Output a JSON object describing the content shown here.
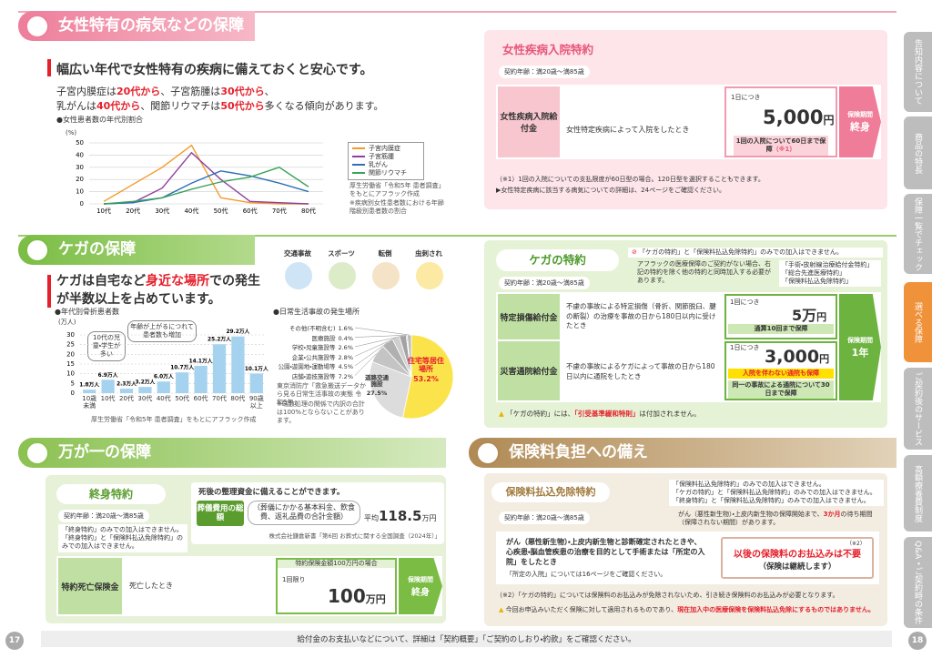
{
  "left_page": {
    "page_number": "17",
    "women": {
      "title": "女性特有の病気などの保障",
      "heading": "幅広い年代で女性特有の疾病に備えておくと安心です。",
      "lead": [
        [
          {
            "text": "子宮内膜症は"
          },
          {
            "text": "20代から",
            "em": true
          },
          {
            "text": "、子宮筋腫は"
          },
          {
            "text": "30代から",
            "em": true
          },
          {
            "text": "、"
          }
        ],
        [
          {
            "text": "乳がんは"
          },
          {
            "text": "40代から",
            "em": true
          },
          {
            "text": "、関節リウマチは"
          },
          {
            "text": "50代から",
            "em": true
          },
          {
            "text": "多くなる傾向があります。"
          }
        ]
      ],
      "chart": {
        "type": "line",
        "title": "●女性患者数の年代別割合",
        "unit": "(%)",
        "categories": [
          "10代",
          "20代",
          "30代",
          "40代",
          "50代",
          "60代",
          "70代",
          "80代"
        ],
        "ylim": [
          0,
          50
        ],
        "yticks": [
          0,
          10,
          20,
          30,
          40,
          50
        ],
        "grid": true,
        "series": [
          {
            "name": "子宮内膜症",
            "color": "#f39a2b",
            "values": [
              2,
              16,
              30,
              48,
              5,
              1,
              0,
              0
            ]
          },
          {
            "name": "子宮筋腫",
            "color": "#8e3fa0",
            "values": [
              0,
              1,
              13,
              42,
              20,
              2,
              1,
              0
            ]
          },
          {
            "name": "乳がん",
            "color": "#2f6fb5",
            "values": [
              0,
              1,
              5,
              17,
              27,
              23,
              17,
              10
            ]
          },
          {
            "name": "関節リウマチ",
            "color": "#3aa35a",
            "values": [
              0,
              2,
              5,
              12,
              18,
              22,
              30,
              14
            ]
          }
        ]
      },
      "source": "厚生労働省「令和5年 患者調査」をもとにアフラック作成",
      "source_note": "※疾病別女性患者数における年齢階級別患者数の割合"
    },
    "injury": {
      "title": "ケガの保障",
      "icons": [
        "交通事故",
        "スポーツ",
        "転倒",
        "虫刺され"
      ],
      "heading": [
        {
          "text": "ケガは自宅など"
        },
        {
          "text": "身近な場所",
          "em": true
        },
        {
          "text": "での発生が半数以上を占めています。"
        }
      ],
      "bar_chart": {
        "type": "bar",
        "title": "●年代別骨折患者数",
        "unit": "(万人)",
        "categories": [
          "10歳未満",
          "10代",
          "20代",
          "30代",
          "40代",
          "50代",
          "60代",
          "70代",
          "80代",
          "90歳以上"
        ],
        "values": [
          1.8,
          6.9,
          2.3,
          3.2,
          6.0,
          10.7,
          14.1,
          25.2,
          29.2,
          10.1
        ],
        "value_labels": [
          "1.8万人",
          "6.9万人",
          "2.3万人",
          "3.2万人",
          "6.0万人",
          "10.7万人",
          "14.1万人",
          "25.2万人",
          "29.2万人",
          "10.1万人"
        ],
        "color": "#a5d3ef",
        "ylim": [
          0,
          30
        ],
        "yticks": [
          0,
          5,
          10,
          15,
          20,
          25,
          30
        ],
        "grid": true,
        "annotations": [
          "10代の児童・学生が多い",
          "年齢が上がるにつれて患者数も増加"
        ]
      },
      "bar_source": "厚生労働省「令和5年 患者調査」をもとにアフラック作成",
      "pie_chart": {
        "type": "pie",
        "title": "●日常生活事故の発生場所",
        "categories": [
          "住宅等居住場所",
          "道路交通施設",
          "店舗・遊技施設等",
          "公園・遊園地・運動場等",
          "企業・公共施設等",
          "学校・児童施設等",
          "医療施設",
          "その他(不明含む)"
        ],
        "values": [
          53.2,
          27.5,
          7.2,
          4.5,
          2.8,
          2.6,
          0.4,
          1.6
        ],
        "value_labels": [
          "53.2%",
          "27.5%",
          "7.2%",
          "4.5%",
          "2.8%",
          "2.6%",
          "0.4%",
          "1.6%"
        ],
        "colors": [
          "#fbe44b",
          "#dcdcdc",
          "#c4c4c4",
          "#b0b0b0",
          "#cfcfcf",
          "#a2a2a2",
          "#8c8c8c",
          "#bdbdbd"
        ]
      },
      "pie_source": "東京消防庁「救急搬送データから見る日常生活事故の実態 令和5年」",
      "pie_note": "※端数処理の関係で内訳の合計は100%とならないことがあります。"
    },
    "death": {
      "title": "万が一の保障",
      "rider": "終身特約",
      "age": "契約年齢：満20歳～満85歳",
      "notes": [
        "「終身特約」のみでの加入はできません。",
        "「終身特約」と「保険料払込免除特約」のみでの加入はできません。"
      ],
      "lead": "死後の整理資金に備えることができます。",
      "funeral_label": "葬儀費用の総額",
      "funeral_detail": "（葬儀にかかる基本料金、飲食費、返礼品費の合計金額）",
      "average_label": "平均",
      "average_value": "118.5",
      "average_unit": "万円",
      "funeral_source": "株式会社鎌倉新書「第6回 お葬式に関する全国調査（2024年）」",
      "benefit": {
        "name": "特約死亡保険金",
        "condition": "死亡したとき",
        "case": "特約保険金額100万円の場合",
        "frequency": "1回限り",
        "amount": "100",
        "unit": "万円",
        "period_label": "保険期間",
        "period": "終身"
      }
    }
  },
  "right_page": {
    "page_number": "18",
    "female_rider": {
      "title": "女性疾病入院特約",
      "age": "契約年齢：満20歳～満85歳",
      "benefit": {
        "name": "女性疾病入院給付金",
        "condition": "女性特定疾病によって入院をしたとき",
        "per": "1日につき",
        "amount": "5,000",
        "unit": "円",
        "limit": "1回の入院について60日まで保障",
        "limit_ref": "（※1）",
        "period_label": "保険期間",
        "period": "終身"
      },
      "notes": [
        "（※1）1回の入院についての支払限度が60日型の場合。120日型を選択することもできます。",
        "▶女性特定疾病に該当する病気についての詳細は、24ページをご確認ください。"
      ]
    },
    "injury_rider": {
      "title": "ケガの特約",
      "age": "契約年齢：満20歳～満85歳",
      "warning": "「ケガの特約」と「保険料払込免除特約」のみでの加入はできません。",
      "info": "アフラックの医療保障のご契約がない場合、右記の特約を除く他の特約と同時加入する必要があります。",
      "exceptions": [
        "「手術・放射線治療給付金特約」",
        "「総合先進医療特約」",
        "「保険料払込免除特約」"
      ],
      "benefits": [
        {
          "name": "特定損傷給付金",
          "condition": "不慮の事故による特定損傷（骨折、関節脱臼、腱の断裂）の治療を事故の日から180日以内に受けたとき",
          "per": "1回につき",
          "amount": "5万",
          "unit": "円",
          "limit": "通算10回まで保障"
        },
        {
          "name": "災害通院給付金",
          "condition": "不慮の事故によるケガによって事故の日から180日以内に通院をしたとき",
          "per": "1日につき",
          "amount": "3,000",
          "unit": "円",
          "highlight": "入院を伴わない通院も保障",
          "limit": "同一の事故による通院について30日まで保障"
        }
      ],
      "period_label": "保険期間",
      "period": "1年",
      "footer": [
        {
          "text": "「ケガの特約」には、"
        },
        {
          "text": "「引受基準緩和特則」",
          "em": true
        },
        {
          "text": "は付加されません。"
        }
      ]
    },
    "premium": {
      "title": "保険料負担への備え",
      "rider": "保険料払込免除特約",
      "age": "契約年齢：満20歳～満85歳",
      "notes": [
        "「保険料払込免除特約」のみでの加入はできません。",
        "「ケガの特約」と「保険料払込免除特約」のみでの加入はできません。",
        "「終身特約」と「保険料払込免除特約」のみでの加入はできません。"
      ],
      "waiting": [
        {
          "text": "がん（悪性新生物）・上皮内新生物の保障開始まで、"
        },
        {
          "text": "3か月",
          "em": true
        },
        {
          "text": "の待ち期間（保障されない期間）があります。"
        }
      ],
      "condition": "がん（悪性新生物）・上皮内新生物と診断確定されたときや、心疾患・脳血管疾患の治療を目的として手術または「所定の入院」をしたとき",
      "condition_note": "「所定の入院」については16ページをご確認ください。",
      "result": "以後の保険料のお払込みは不要",
      "result_sub": "（保険は継続します）",
      "result_ref": "（※2）",
      "note_ref": "（※2）「ケガの特約」については保険料のお払込みが免除されないため、引き続き保険料のお払込みが必要となります。",
      "disclaimer": [
        {
          "text": "今回お申込みいただく保険に対して適用されるものであり、"
        },
        {
          "text": "現在加入中の医療保険を保険料払込免除にするものではありません。",
          "em": true
        }
      ]
    }
  },
  "footer": "給付金のお支払いなどについて、詳細は「契約概要」「ご契約のしおり・約款」をご確認ください。",
  "tabs": [
    {
      "label": "告知内容について"
    },
    {
      "label": "商品の特長"
    },
    {
      "label": "保障一覧でチェック"
    },
    {
      "label": "選べる保障",
      "active": true
    },
    {
      "label": "ご契約後のサービス"
    },
    {
      "label": "高額療養費制度"
    },
    {
      "label": "Q&A・ご契約時の条件"
    }
  ]
}
